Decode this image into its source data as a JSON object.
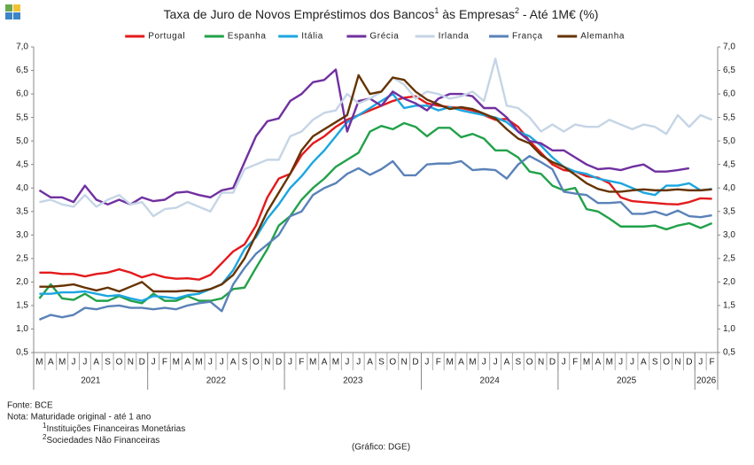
{
  "chart_data": {
    "type": "line",
    "title_parts": [
      "Taxa de Juro de Novos Empréstimos dos Bancos",
      "1",
      " às Empresas",
      "2",
      " - Até 1M€ (%)"
    ],
    "categories": [
      "M",
      "A",
      "M",
      "J",
      "J",
      "A",
      "S",
      "O",
      "N",
      "D",
      "J",
      "F",
      "M",
      "A",
      "M",
      "J",
      "J",
      "A",
      "S",
      "O",
      "N",
      "D",
      "J",
      "F",
      "M",
      "A",
      "M",
      "J",
      "J",
      "A",
      "S",
      "O",
      "N",
      "D",
      "J",
      "F",
      "M",
      "A",
      "M",
      "J",
      "J",
      "A",
      "S",
      "O",
      "N",
      "D",
      "J",
      "F",
      "M",
      "A",
      "M",
      "J",
      "J",
      "A",
      "S",
      "O",
      "N",
      "D",
      "J",
      "F"
    ],
    "years": [
      "2021",
      "2022",
      "2023",
      "2024",
      "2025",
      "2026"
    ],
    "ylim": [
      0.5,
      7.0
    ],
    "yticks": [
      {
        "value": 0.5,
        "label": "0,5"
      },
      {
        "value": 1.0,
        "label": "1,0"
      },
      {
        "value": 1.5,
        "label": "1,5"
      },
      {
        "value": 2.0,
        "label": "2,0"
      },
      {
        "value": 2.5,
        "label": "2,5"
      },
      {
        "value": 3.0,
        "label": "3,0"
      },
      {
        "value": 3.5,
        "label": "3,5"
      },
      {
        "value": 4.0,
        "label": "4,0"
      },
      {
        "value": 4.5,
        "label": "4,5"
      },
      {
        "value": 5.0,
        "label": "5,0"
      },
      {
        "value": 5.5,
        "label": "5,5"
      },
      {
        "value": 6.0,
        "label": "6,0"
      },
      {
        "value": 6.5,
        "label": "6,5"
      },
      {
        "value": 7.0,
        "label": "7,0"
      }
    ],
    "grid": false,
    "legend": "top",
    "series": [
      {
        "name": "Portugal",
        "color": "#e31a1c",
        "values": [
          2.2,
          2.2,
          2.17,
          2.17,
          2.12,
          2.17,
          2.2,
          2.27,
          2.2,
          2.1,
          2.17,
          2.1,
          2.07,
          2.08,
          2.05,
          2.15,
          2.4,
          2.65,
          2.8,
          3.2,
          3.8,
          4.2,
          4.3,
          4.7,
          4.95,
          5.1,
          5.3,
          5.45,
          5.55,
          5.65,
          5.75,
          5.85,
          5.92,
          5.95,
          5.8,
          5.75,
          5.72,
          5.7,
          5.65,
          5.55,
          5.45,
          5.47,
          5.3,
          5.0,
          4.75,
          4.5,
          4.38,
          4.35,
          4.25,
          4.22,
          4.1,
          3.8,
          3.72,
          3.7,
          3.68,
          3.66,
          3.65,
          3.7,
          3.78,
          3.77
        ]
      },
      {
        "name": "Espanha",
        "color": "#22a14a",
        "values": [
          1.65,
          1.95,
          1.65,
          1.62,
          1.75,
          1.6,
          1.6,
          1.7,
          1.6,
          1.55,
          1.75,
          1.6,
          1.6,
          1.7,
          1.6,
          1.6,
          1.65,
          1.85,
          1.88,
          2.3,
          2.7,
          3.2,
          3.4,
          3.75,
          4.0,
          4.2,
          4.45,
          4.6,
          4.75,
          5.2,
          5.32,
          5.25,
          5.38,
          5.3,
          5.1,
          5.28,
          5.28,
          5.08,
          5.15,
          5.05,
          4.8,
          4.8,
          4.65,
          4.35,
          4.3,
          4.05,
          3.95,
          4.0,
          3.55,
          3.5,
          3.35,
          3.18,
          3.18,
          3.18,
          3.2,
          3.12,
          3.2,
          3.25,
          3.15,
          3.25
        ]
      },
      {
        "name": "Itália",
        "color": "#1ba6e0",
        "values": [
          1.75,
          1.75,
          1.78,
          1.78,
          1.8,
          1.75,
          1.7,
          1.72,
          1.65,
          1.6,
          1.7,
          1.68,
          1.65,
          1.72,
          1.75,
          1.85,
          1.95,
          2.25,
          2.7,
          2.95,
          3.35,
          3.65,
          4.0,
          4.25,
          4.55,
          4.8,
          5.1,
          5.4,
          5.55,
          5.7,
          5.85,
          6.0,
          5.7,
          5.75,
          5.75,
          5.65,
          5.72,
          5.65,
          5.6,
          5.55,
          5.5,
          5.4,
          5.2,
          5.1,
          4.9,
          4.65,
          4.45,
          4.35,
          4.3,
          4.2,
          4.15,
          4.1,
          4.0,
          3.9,
          3.85,
          4.05,
          4.05,
          4.1,
          3.95,
          3.98
        ]
      },
      {
        "name": "Grécia",
        "color": "#7030a0",
        "values": [
          3.95,
          3.8,
          3.8,
          3.7,
          4.05,
          3.75,
          3.65,
          3.75,
          3.65,
          3.8,
          3.72,
          3.75,
          3.9,
          3.92,
          3.85,
          3.8,
          3.95,
          4.0,
          4.55,
          5.1,
          5.42,
          5.48,
          5.85,
          6.0,
          6.25,
          6.3,
          6.52,
          5.2,
          5.85,
          5.9,
          5.75,
          6.05,
          5.9,
          5.8,
          5.65,
          5.9,
          6.0,
          6.0,
          5.95,
          5.7,
          5.7,
          5.5,
          5.2,
          5.0,
          4.95,
          4.8,
          4.8,
          4.65,
          4.5,
          4.4,
          4.42,
          4.38,
          4.45,
          4.5,
          4.35,
          4.35,
          4.38,
          4.42,
          null,
          null
        ]
      },
      {
        "name": "Irlanda",
        "color": "#c5d5e6",
        "values": [
          3.7,
          3.75,
          3.65,
          3.6,
          3.85,
          3.6,
          3.75,
          3.85,
          3.65,
          3.7,
          3.4,
          3.55,
          3.58,
          3.7,
          3.6,
          3.5,
          3.9,
          3.9,
          4.4,
          4.5,
          4.6,
          4.6,
          5.1,
          5.2,
          5.45,
          5.6,
          5.65,
          6.0,
          5.8,
          5.9,
          6.05,
          6.35,
          6.2,
          5.9,
          6.05,
          6.0,
          5.9,
          5.95,
          6.05,
          5.85,
          6.75,
          5.75,
          5.7,
          5.5,
          5.2,
          5.35,
          5.2,
          5.35,
          5.3,
          5.3,
          5.45,
          5.35,
          5.25,
          5.35,
          5.3,
          5.15,
          5.55,
          5.3,
          5.55,
          5.45
        ]
      },
      {
        "name": "França",
        "color": "#5a82b8",
        "values": [
          1.2,
          1.3,
          1.25,
          1.3,
          1.45,
          1.42,
          1.48,
          1.5,
          1.45,
          1.45,
          1.42,
          1.45,
          1.42,
          1.5,
          1.55,
          1.58,
          1.38,
          1.95,
          2.3,
          2.6,
          2.8,
          3.0,
          3.4,
          3.5,
          3.85,
          4.0,
          4.1,
          4.3,
          4.42,
          4.28,
          4.4,
          4.57,
          4.27,
          4.27,
          4.5,
          4.52,
          4.52,
          4.57,
          4.38,
          4.4,
          4.38,
          4.2,
          4.5,
          4.68,
          4.55,
          4.4,
          3.92,
          3.88,
          3.85,
          3.68,
          3.68,
          3.7,
          3.45,
          3.45,
          3.5,
          3.42,
          3.52,
          3.4,
          3.38,
          3.42
        ]
      },
      {
        "name": "Alemanha",
        "color": "#663300",
        "values": [
          1.9,
          1.9,
          1.92,
          1.95,
          1.88,
          1.82,
          1.88,
          1.8,
          1.9,
          2.0,
          1.8,
          1.8,
          1.8,
          1.82,
          1.8,
          1.85,
          1.95,
          2.15,
          2.5,
          3.0,
          3.5,
          3.9,
          4.3,
          4.8,
          5.1,
          5.25,
          5.4,
          5.55,
          6.4,
          6.0,
          6.05,
          6.35,
          6.3,
          6.05,
          5.88,
          5.78,
          5.68,
          5.72,
          5.68,
          5.58,
          5.48,
          5.25,
          5.05,
          4.95,
          4.7,
          4.55,
          4.45,
          4.28,
          4.1,
          3.98,
          3.92,
          3.92,
          3.95,
          3.97,
          3.95,
          3.95,
          3.97,
          3.95,
          3.95,
          3.97
        ]
      }
    ],
    "source": "Fonte: BCE",
    "note": "Nota: Maturidade original - até 1 ano",
    "footnotes": [
      {
        "mark": "1",
        "text": "Instituições Financeiras Monetárias"
      },
      {
        "mark": "2",
        "text": "Sociedades Não Financeiras"
      }
    ],
    "credit": "(Gráfico: DGE)"
  }
}
